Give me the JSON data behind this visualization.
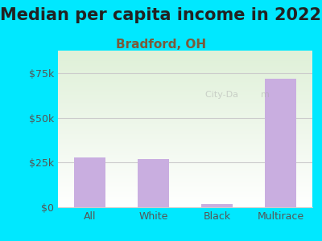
{
  "title": "Median per capita income in 2022",
  "subtitle": "Bradford, OH",
  "categories": [
    "All",
    "White",
    "Black",
    "Multirace"
  ],
  "values": [
    28000,
    27000,
    2000,
    72000
  ],
  "bar_color": "#c9aee0",
  "title_fontsize": 15,
  "subtitle_fontsize": 11,
  "subtitle_color": "#7b5a3a",
  "title_color": "#222222",
  "tick_label_color": "#555555",
  "bg_outer": "#00e8ff",
  "bg_plot_top": "#dff0d8",
  "bg_plot_bottom": "#ffffff",
  "ylim": [
    0,
    87500
  ],
  "yticks": [
    0,
    25000,
    50000,
    75000
  ],
  "ytick_labels": [
    "$0",
    "$25k",
    "$50k",
    "$75k"
  ],
  "grid_color": "#cccccc",
  "bar_width": 0.5
}
